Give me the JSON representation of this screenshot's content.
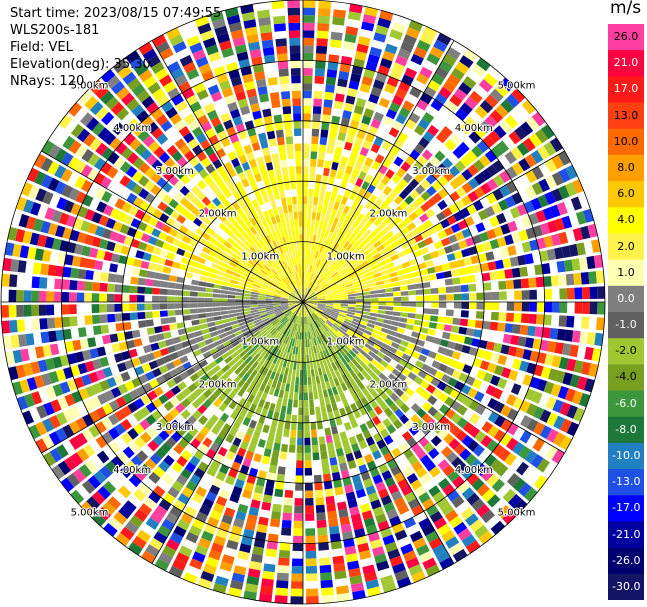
{
  "header": {
    "start_time": "Start time: 2023/08/15 07:49:55",
    "instrument": "WLS200s-181",
    "field": "Field: VEL",
    "elevation": "Elevation(deg): 35.30",
    "nrays": "NRays: 120"
  },
  "range_ring_labels": [
    "1.00km",
    "2.00km",
    "3.00km",
    "4.00km",
    "5.00km"
  ],
  "colorbar": {
    "unit": "m/s",
    "labels": [
      "26.0",
      "21.0",
      "17.0",
      "13.0",
      "10.0",
      "8.0",
      "6.0",
      "4.0",
      "2.0",
      "1.0",
      "0.0",
      "-1.0",
      "-2.0",
      "-4.0",
      "-6.0",
      "-8.0",
      "-10.0",
      "-13.0",
      "-17.0",
      "-21.0",
      "-26.0",
      "-30.0"
    ],
    "colors": [
      "#ff3fa0",
      "#ff0040",
      "#ff1a1a",
      "#ff4010",
      "#ff6a00",
      "#ffa000",
      "#ffc800",
      "#ffff00",
      "#fff24a",
      "#ffffb4",
      "#7f7f7f",
      "#606060",
      "#a0c832",
      "#78a020",
      "#3c963c",
      "#1e7837",
      "#2080c0",
      "#1f50e6",
      "#0000ff",
      "#0000a0",
      "#00006e",
      "#141464"
    ]
  },
  "chart_data": {
    "type": "ppi",
    "field": "VEL",
    "units": "m/s",
    "nrays": 120,
    "elevation_deg": 35.3,
    "range_rings_km": [
      1,
      2,
      3,
      4,
      5
    ],
    "max_range_km": 5
  }
}
